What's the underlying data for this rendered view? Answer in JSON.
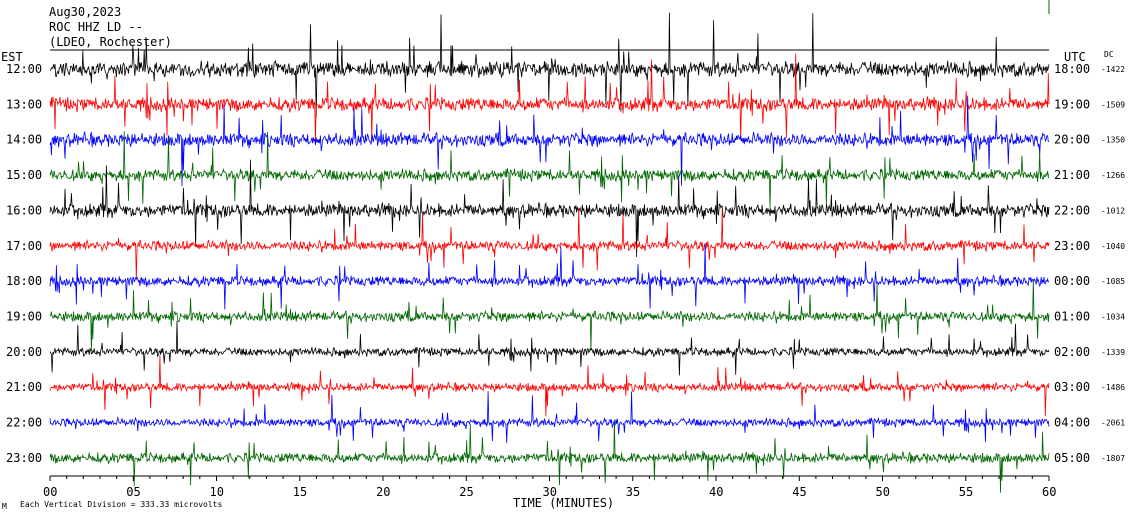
{
  "header": {
    "line1": "Aug30,2023",
    "line2": "ROC HHZ LD --",
    "line3": "(LDEO, Rochester)"
  },
  "chart_data": {
    "type": "line",
    "title": "",
    "xlabel": "TIME (MINUTES)",
    "left_axis_label": "EST",
    "right_axis_label": "UTC",
    "dc_label": "DC",
    "footer_note": "Each Vertical Division = 333.33 microvolts",
    "x_ticks": [
      "00",
      "05",
      "10",
      "15",
      "20",
      "25",
      "30",
      "35",
      "40",
      "45",
      "50",
      "55",
      "60"
    ],
    "xlim": [
      0,
      60
    ],
    "trace_colors": [
      "#000000",
      "#ff0000",
      "#0000ff",
      "#006600"
    ],
    "rows": [
      {
        "est": "12:00",
        "utc": "18:00",
        "dc": "-1422",
        "color": "#000000",
        "amp": 9
      },
      {
        "est": "13:00",
        "utc": "19:00",
        "dc": "-1509",
        "color": "#ff0000",
        "amp": 8
      },
      {
        "est": "14:00",
        "utc": "20:00",
        "dc": "-1350",
        "color": "#0000ff",
        "amp": 8
      },
      {
        "est": "15:00",
        "utc": "21:00",
        "dc": "-1266",
        "color": "#006600",
        "amp": 7
      },
      {
        "est": "16:00",
        "utc": "22:00",
        "dc": "-1012",
        "color": "#000000",
        "amp": 8
      },
      {
        "est": "17:00",
        "utc": "23:00",
        "dc": "-1040",
        "color": "#ff0000",
        "amp": 6
      },
      {
        "est": "18:00",
        "utc": "00:00",
        "dc": "-1085",
        "color": "#0000ff",
        "amp": 6
      },
      {
        "est": "19:00",
        "utc": "01:00",
        "dc": "-1034",
        "color": "#006600",
        "amp": 6
      },
      {
        "est": "20:00",
        "utc": "02:00",
        "dc": "-1339",
        "color": "#000000",
        "amp": 5
      },
      {
        "est": "21:00",
        "utc": "03:00",
        "dc": "-1486",
        "color": "#ff0000",
        "amp": 5
      },
      {
        "est": "22:00",
        "utc": "04:00",
        "dc": "-2061",
        "color": "#0000ff",
        "amp": 5
      },
      {
        "est": "23:00",
        "utc": "05:00",
        "dc": "-1807",
        "color": "#006600",
        "amp": 6
      }
    ]
  }
}
